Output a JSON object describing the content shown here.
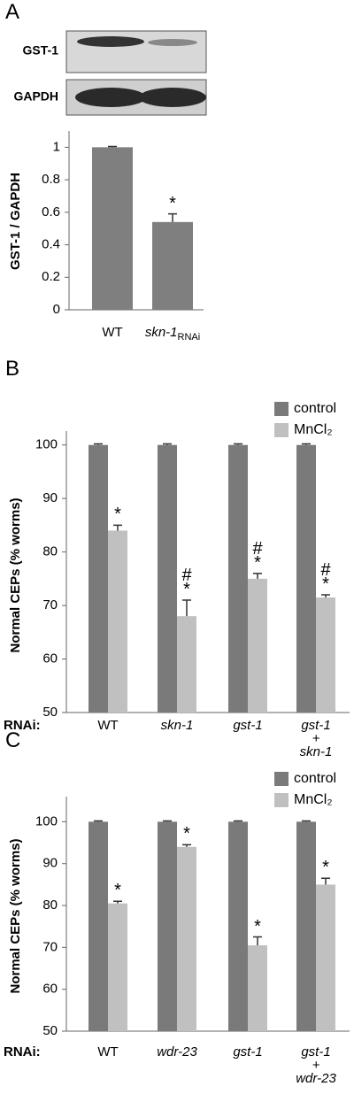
{
  "chart_data": [
    {
      "type": "bar",
      "panel": "A",
      "blot_labels": [
        "GST-1",
        "GAPDH"
      ],
      "ylabel": "GST-1 / GAPDH",
      "categories": [
        "WT",
        "skn-1"
      ],
      "category_subscripts": [
        null,
        "RNAi"
      ],
      "values": [
        1,
        0.54
      ],
      "errors": [
        0.005,
        0.05
      ],
      "annotations": [
        null,
        "*"
      ],
      "color": "#7f7f7f",
      "ylim": [
        0,
        1.1
      ],
      "yticks": [
        0,
        0.2,
        0.4,
        0.6,
        0.8,
        1
      ]
    },
    {
      "type": "grouped-bar",
      "panel": "B",
      "ylabel": "Normal CEPs (% worms)",
      "category_axis_label": "RNAi:",
      "categories": [
        "WT",
        "skn-1",
        "gst-1",
        "gst-1\n+\nskn-1"
      ],
      "series": [
        {
          "name": "control",
          "color": "#7a7a7a",
          "values": [
            100,
            100,
            100,
            100
          ],
          "errors": [
            0.2,
            0.2,
            0.2,
            0.2
          ]
        },
        {
          "name": "MnCl₂",
          "color": "#c0c0c0",
          "values": [
            84,
            68,
            75,
            71.5
          ],
          "errors": [
            1,
            3,
            1,
            0.5
          ],
          "annotations": [
            "*",
            "#\n*",
            "#\n*",
            "#\n*"
          ]
        }
      ],
      "ylim": [
        50,
        102.6
      ],
      "yticks": [
        50,
        60,
        70,
        80,
        90,
        100
      ]
    },
    {
      "type": "grouped-bar",
      "panel": "C",
      "ylabel": "Normal CEPs (% worms)",
      "category_axis_label": "RNAi:",
      "categories": [
        "WT",
        "wdr-23",
        "gst-1",
        "gst-1\n+\nwdr-23"
      ],
      "series": [
        {
          "name": "control",
          "color": "#7a7a7a",
          "values": [
            100,
            100,
            100,
            100
          ],
          "errors": [
            0.2,
            0.2,
            0.2,
            0.2
          ]
        },
        {
          "name": "MnCl₂",
          "color": "#c0c0c0",
          "values": [
            80.5,
            94,
            70.5,
            85
          ],
          "errors": [
            0.5,
            0.5,
            2,
            1.5
          ],
          "annotations": [
            "*",
            "*",
            "*",
            "*"
          ]
        }
      ],
      "ylim": [
        50,
        106
      ],
      "yticks": [
        50,
        60,
        70,
        80,
        90,
        100
      ]
    }
  ]
}
